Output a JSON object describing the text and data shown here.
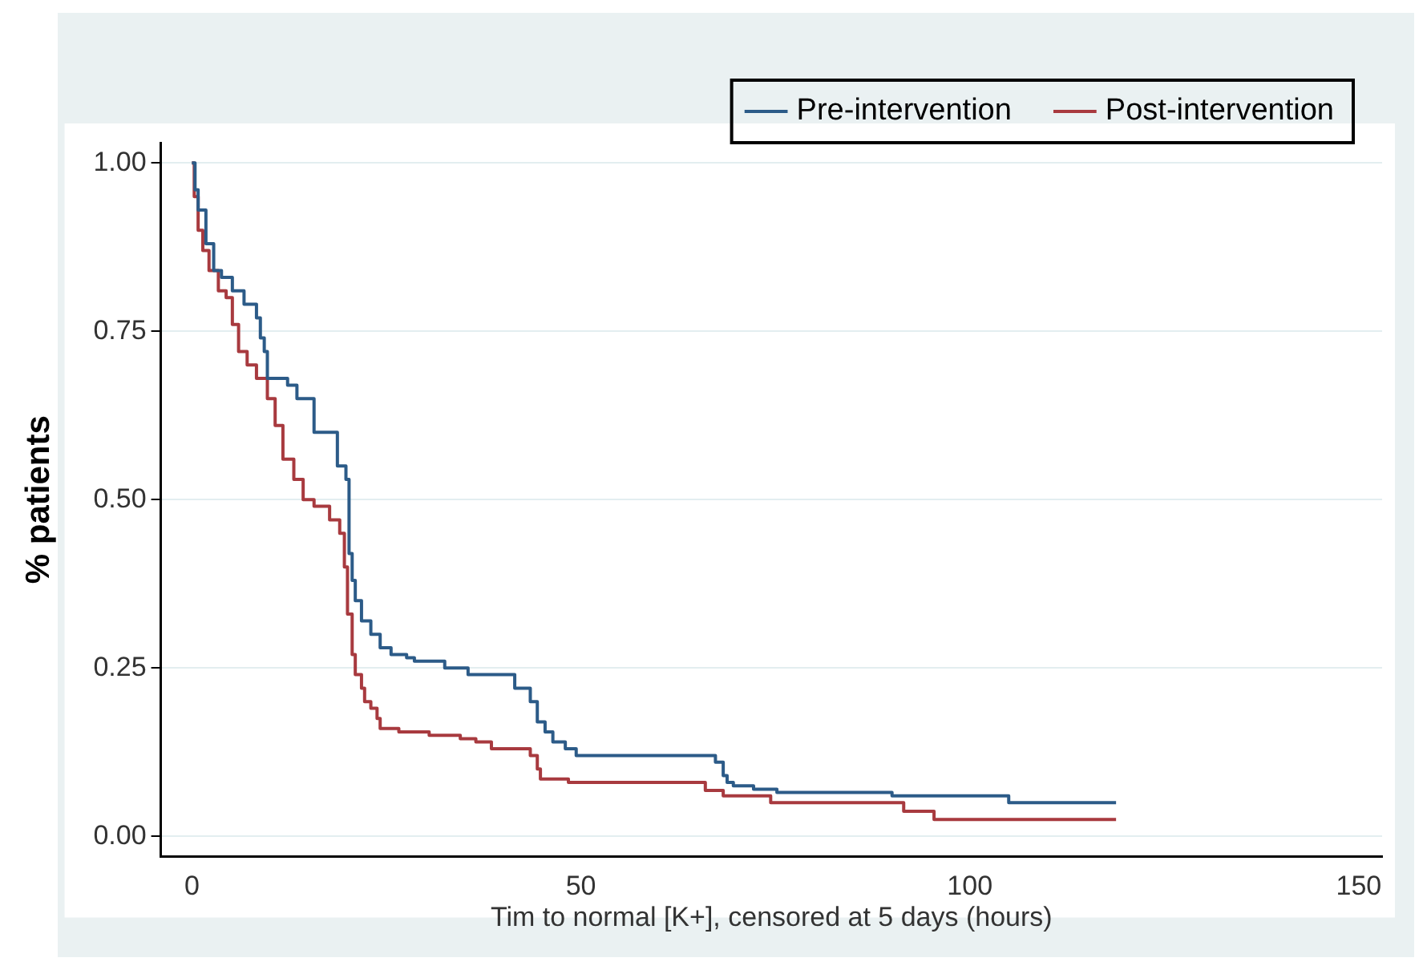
{
  "chart_data": {
    "type": "step",
    "xlabel": "Tim to normal [K+], censored at 5 days (hours)",
    "ylabel": "% patients",
    "xlim": [
      -4,
      153
    ],
    "xticks": [
      0,
      50,
      100,
      150
    ],
    "ylim": [
      -0.03,
      1.03
    ],
    "yticks": [
      {
        "value": 0,
        "label": "0.00"
      },
      {
        "value": 0.25,
        "label": "0.25"
      },
      {
        "value": 0.5,
        "label": "0.50"
      },
      {
        "value": 0.75,
        "label": "0.75"
      },
      {
        "value": 1,
        "label": "1.00"
      }
    ],
    "grid": "y",
    "legend": "top right",
    "line_style": "solid",
    "marker": "none",
    "series": [
      {
        "name": "Pre-intervention",
        "color": "#2c5b88",
        "x": [
          0,
          0.4,
          0.8,
          1.8,
          2.8,
          3.8,
          5.2,
          6.7,
          8.3,
          8.8,
          9.3,
          9.7,
          12.3,
          13.5,
          15.7,
          18.7,
          19.8,
          20.2,
          20.6,
          21,
          21.8,
          23,
          24.2,
          25.6,
          27.6,
          28.6,
          32.5,
          35.5,
          41.5,
          43.5,
          44.4,
          45.4,
          46.4,
          48,
          49.4,
          50.8,
          67.3,
          68.3,
          68.8,
          69.6,
          72.2,
          75.2,
          90,
          105,
          118.8
        ],
        "values": [
          1,
          0.96,
          0.93,
          0.88,
          0.84,
          0.83,
          0.81,
          0.79,
          0.77,
          0.74,
          0.72,
          0.68,
          0.67,
          0.65,
          0.6,
          0.55,
          0.53,
          0.42,
          0.38,
          0.35,
          0.32,
          0.3,
          0.28,
          0.27,
          0.265,
          0.26,
          0.25,
          0.24,
          0.22,
          0.2,
          0.17,
          0.155,
          0.14,
          0.13,
          0.12,
          0.12,
          0.11,
          0.09,
          0.08,
          0.075,
          0.07,
          0.065,
          0.06,
          0.05,
          0.05
        ]
      },
      {
        "name": "Post-intervention",
        "color": "#a83a3f",
        "x": [
          0,
          0.3,
          0.8,
          1.4,
          2.2,
          3.4,
          4.4,
          5.2,
          6,
          7.1,
          8.3,
          9.7,
          10.7,
          11.7,
          13.1,
          14.3,
          15.7,
          17.7,
          19,
          19.6,
          20,
          20.6,
          21,
          21.8,
          22.2,
          23,
          23.8,
          24.2,
          26.6,
          30.5,
          34.5,
          36.5,
          38.5,
          43.5,
          44.4,
          44.8,
          48.4,
          66,
          68.3,
          74.4,
          91.5,
          95.4,
          118.8
        ],
        "values": [
          1,
          0.95,
          0.9,
          0.87,
          0.84,
          0.81,
          0.8,
          0.76,
          0.72,
          0.7,
          0.68,
          0.65,
          0.61,
          0.56,
          0.53,
          0.5,
          0.49,
          0.47,
          0.45,
          0.4,
          0.33,
          0.27,
          0.24,
          0.22,
          0.2,
          0.19,
          0.175,
          0.16,
          0.155,
          0.15,
          0.145,
          0.14,
          0.13,
          0.12,
          0.1,
          0.085,
          0.08,
          0.068,
          0.06,
          0.05,
          0.037,
          0.025,
          0.025
        ]
      }
    ]
  }
}
